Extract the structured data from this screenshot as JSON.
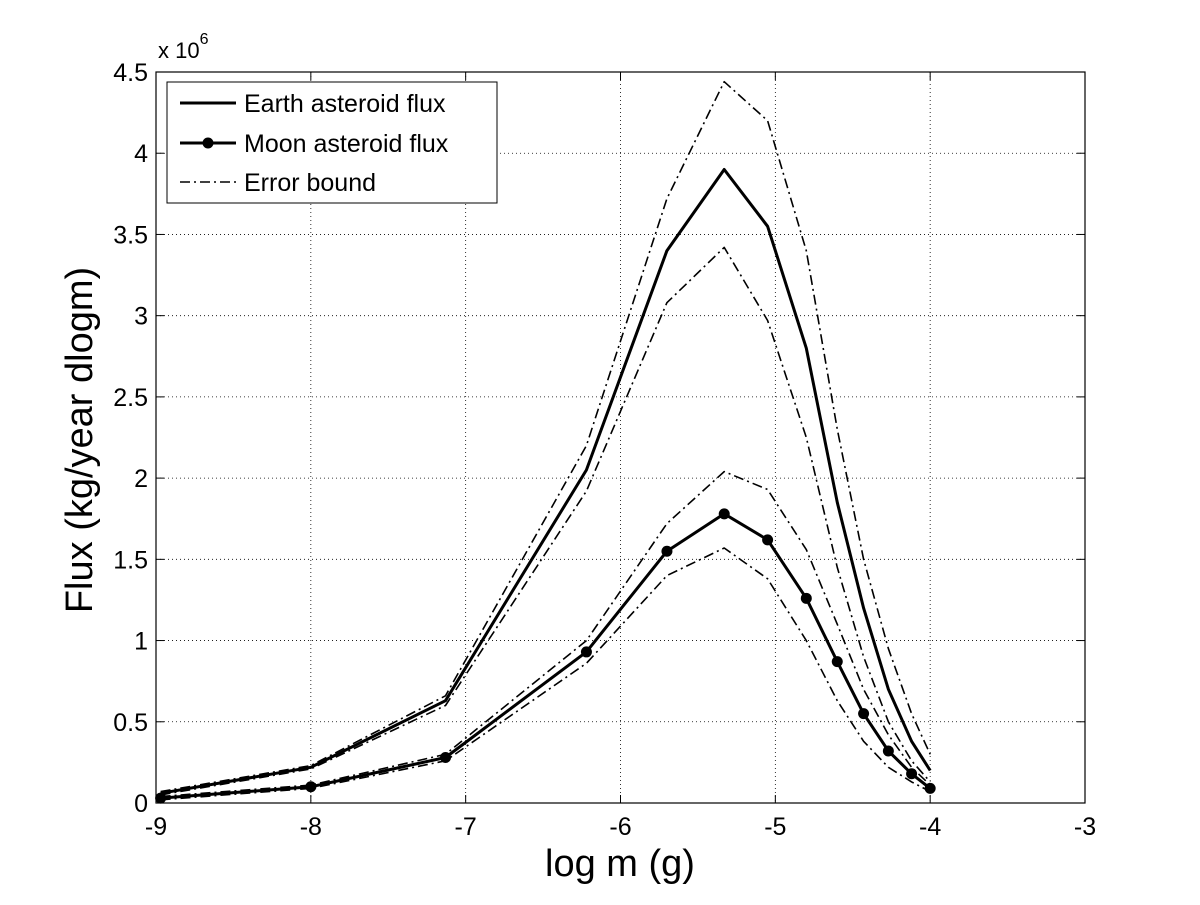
{
  "chart_data": {
    "type": "line",
    "xlabel": "log m (g)",
    "ylabel": "Flux (kg/year dlogm)",
    "y_multiplier_base": "x 10",
    "y_multiplier_exp": "6",
    "xlim": [
      -9,
      -3
    ],
    "ylim": [
      0,
      4.5
    ],
    "xticks": [
      -9,
      -8,
      -7,
      -6,
      -5,
      -4,
      -3
    ],
    "yticks": [
      0,
      0.5,
      1,
      1.5,
      2,
      2.5,
      3,
      3.5,
      4,
      4.5
    ],
    "xtick_labels": [
      "-9",
      "-8",
      "-7",
      "-6",
      "-5",
      "-4",
      "-3"
    ],
    "ytick_labels": [
      "0",
      "0.5",
      "1",
      "1.5",
      "2",
      "2.5",
      "3",
      "3.5",
      "4",
      "4.5"
    ],
    "grid": true,
    "legend_position": "top-left",
    "legend": [
      {
        "label": "Earth asteroid flux",
        "style": "solid"
      },
      {
        "label": "Moon asteroid flux",
        "style": "solid-marker"
      },
      {
        "label": "Error bound",
        "style": "dash-dot"
      }
    ],
    "x": [
      -8.97,
      -8.0,
      -7.13,
      -6.22,
      -5.7,
      -5.33,
      -5.05,
      -4.8,
      -4.6,
      -4.43,
      -4.27,
      -4.12,
      -4.0
    ],
    "series": [
      {
        "name": "Earth asteroid flux",
        "style": "solid",
        "values": [
          0.06,
          0.22,
          0.63,
          2.05,
          3.4,
          3.9,
          3.55,
          2.8,
          1.85,
          1.2,
          0.7,
          0.38,
          0.2
        ]
      },
      {
        "name": "Moon asteroid flux",
        "style": "solid-marker",
        "values": [
          0.03,
          0.1,
          0.28,
          0.93,
          1.55,
          1.78,
          1.62,
          1.26,
          0.87,
          0.55,
          0.32,
          0.18,
          0.09
        ]
      },
      {
        "style": "dash-dot",
        "values": [
          0.07,
          0.23,
          0.66,
          2.2,
          3.72,
          4.44,
          4.2,
          3.4,
          2.3,
          1.5,
          0.95,
          0.55,
          0.3
        ]
      },
      {
        "style": "dash-dot",
        "values": [
          0.05,
          0.21,
          0.6,
          1.92,
          3.08,
          3.42,
          2.97,
          2.25,
          1.45,
          0.9,
          0.5,
          0.26,
          0.13
        ]
      },
      {
        "style": "dash-dot",
        "values": [
          0.04,
          0.11,
          0.3,
          1.0,
          1.72,
          2.04,
          1.93,
          1.56,
          1.1,
          0.7,
          0.42,
          0.22,
          0.11
        ]
      },
      {
        "style": "dash-dot",
        "values": [
          0.02,
          0.09,
          0.26,
          0.86,
          1.4,
          1.57,
          1.38,
          1.0,
          0.63,
          0.38,
          0.22,
          0.13,
          0.07
        ]
      }
    ]
  }
}
